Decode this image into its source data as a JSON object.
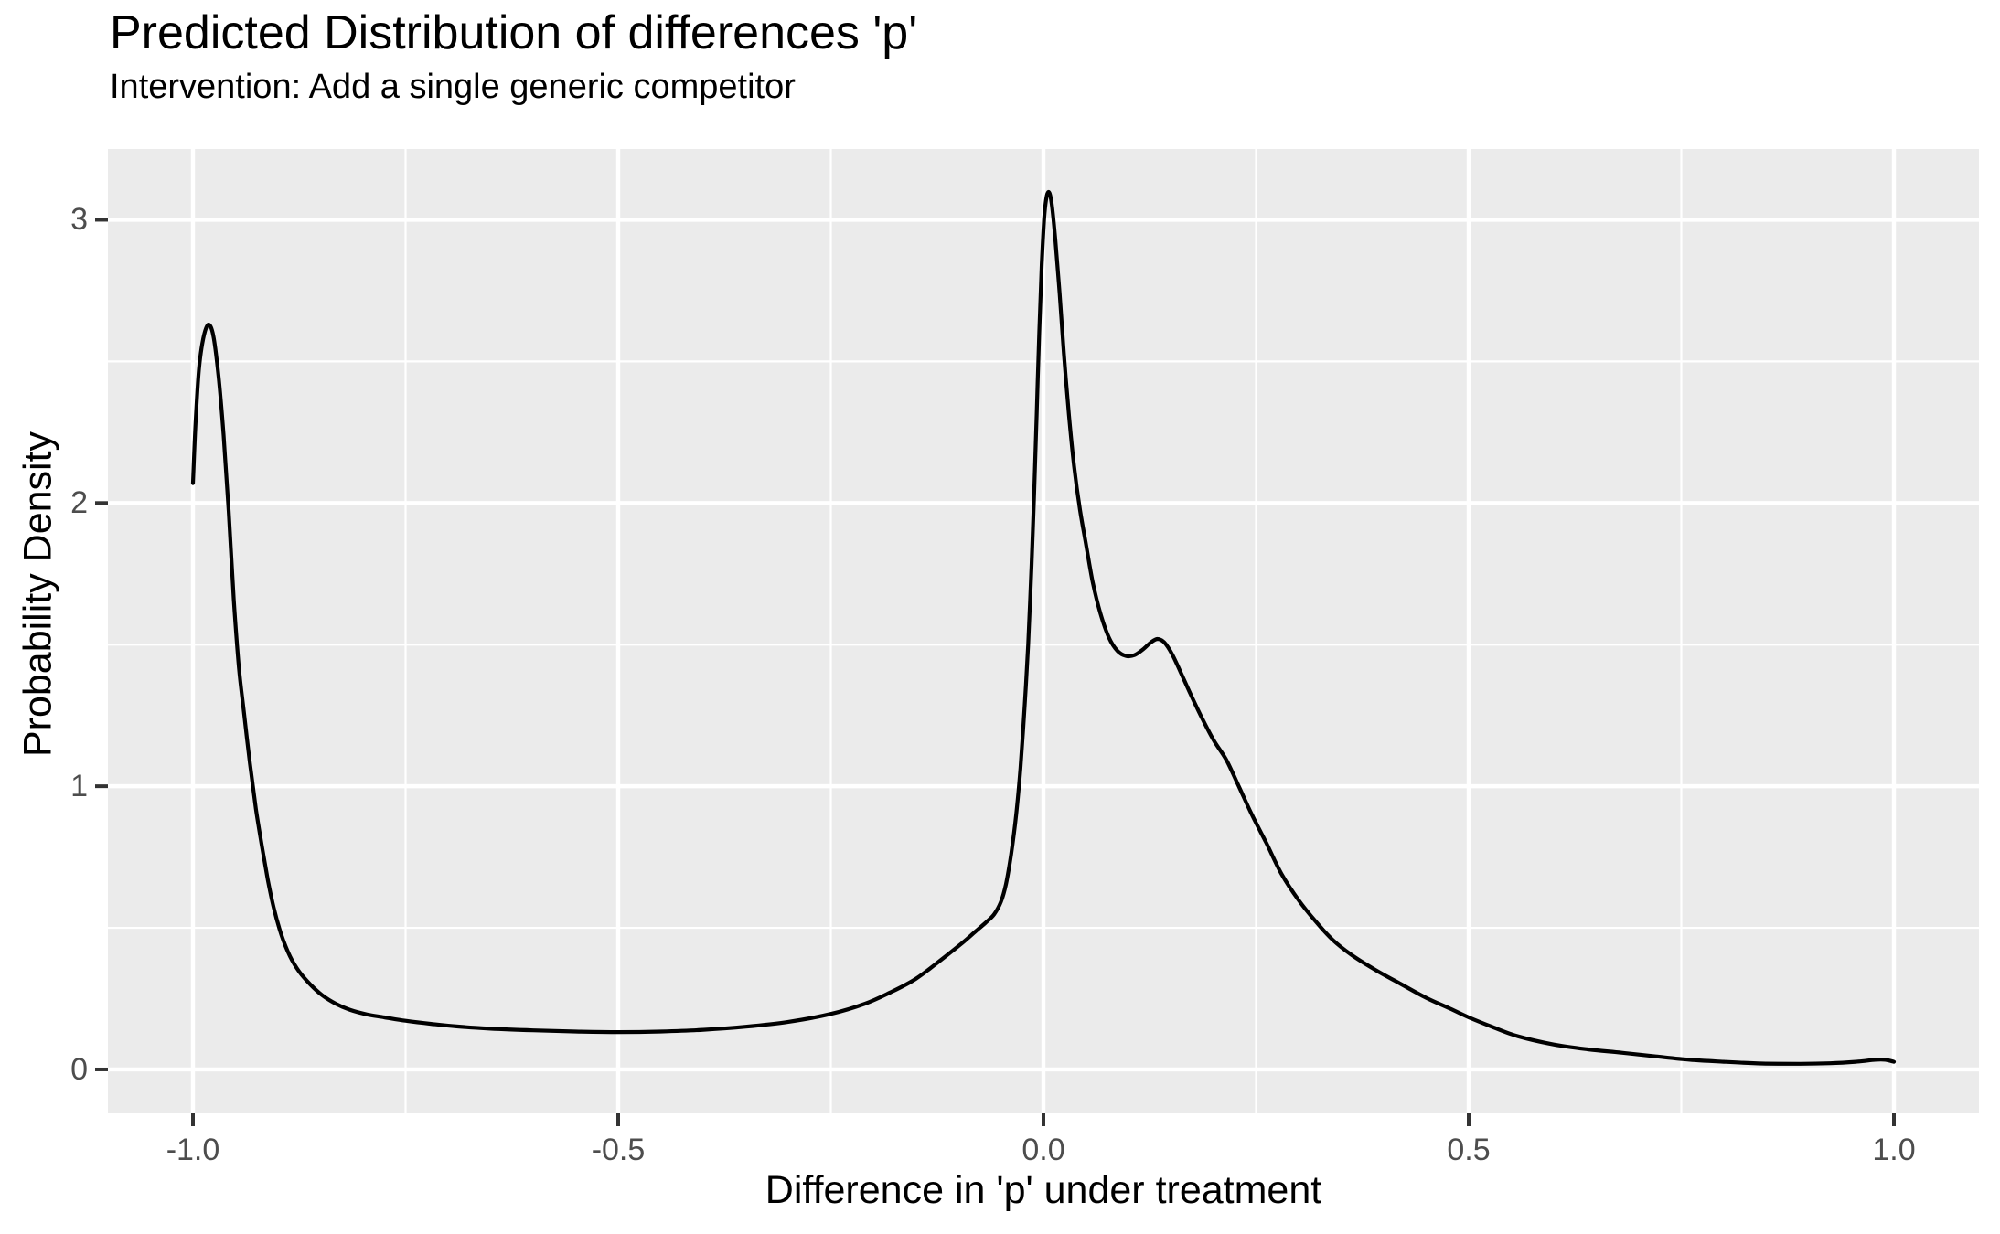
{
  "chart_data": {
    "type": "line",
    "subtype": "density-curve",
    "title": "Predicted Distribution of differences 'p'",
    "subtitle": "Intervention: Add a single generic competitor",
    "xlabel": "Difference in 'p' under treatment",
    "ylabel": "Probability Density",
    "xlim": [
      -1.1,
      1.1
    ],
    "ylim": [
      -0.155,
      3.25
    ],
    "grid": "major-and-minor",
    "legend": "none",
    "x_ticks": [
      {
        "value": -1.0,
        "label": "-1.0"
      },
      {
        "value": -0.5,
        "label": "-0.5"
      },
      {
        "value": 0.0,
        "label": "0.0"
      },
      {
        "value": 0.5,
        "label": "0.5"
      },
      {
        "value": 1.0,
        "label": "1.0"
      }
    ],
    "x_minor": [
      -0.75,
      -0.25,
      0.25,
      0.75
    ],
    "y_ticks": [
      {
        "value": 0,
        "label": "0"
      },
      {
        "value": 1,
        "label": "1"
      },
      {
        "value": 2,
        "label": "2"
      },
      {
        "value": 3,
        "label": "3"
      }
    ],
    "y_minor": [
      0.5,
      1.5,
      2.5
    ],
    "colors": {
      "panel_background": "#EBEBEB",
      "gridline": "#FFFFFF",
      "curve": "#000000",
      "tick_mark": "#333333",
      "tick_label": "#4D4D4D",
      "title_text": "#000000"
    },
    "series": [
      {
        "name": "predicted-density-of-differences",
        "color": "#000000",
        "points": [
          [
            -1.0,
            2.07
          ],
          [
            -0.997,
            2.28
          ],
          [
            -0.993,
            2.47
          ],
          [
            -0.988,
            2.58
          ],
          [
            -0.982,
            2.63
          ],
          [
            -0.976,
            2.59
          ],
          [
            -0.97,
            2.45
          ],
          [
            -0.964,
            2.24
          ],
          [
            -0.958,
            1.97
          ],
          [
            -0.952,
            1.66
          ],
          [
            -0.946,
            1.42
          ],
          [
            -0.94,
            1.26
          ],
          [
            -0.933,
            1.08
          ],
          [
            -0.926,
            0.92
          ],
          [
            -0.919,
            0.79
          ],
          [
            -0.912,
            0.67
          ],
          [
            -0.905,
            0.57
          ],
          [
            -0.896,
            0.475
          ],
          [
            -0.886,
            0.4
          ],
          [
            -0.875,
            0.345
          ],
          [
            -0.862,
            0.3
          ],
          [
            -0.848,
            0.262
          ],
          [
            -0.832,
            0.232
          ],
          [
            -0.815,
            0.21
          ],
          [
            -0.795,
            0.194
          ],
          [
            -0.775,
            0.184
          ],
          [
            -0.75,
            0.172
          ],
          [
            -0.72,
            0.161
          ],
          [
            -0.69,
            0.152
          ],
          [
            -0.65,
            0.144
          ],
          [
            -0.6,
            0.138
          ],
          [
            -0.55,
            0.134
          ],
          [
            -0.5,
            0.132
          ],
          [
            -0.45,
            0.134
          ],
          [
            -0.4,
            0.14
          ],
          [
            -0.35,
            0.151
          ],
          [
            -0.3,
            0.168
          ],
          [
            -0.25,
            0.196
          ],
          [
            -0.21,
            0.232
          ],
          [
            -0.18,
            0.272
          ],
          [
            -0.15,
            0.32
          ],
          [
            -0.12,
            0.388
          ],
          [
            -0.095,
            0.448
          ],
          [
            -0.08,
            0.487
          ],
          [
            -0.068,
            0.518
          ],
          [
            -0.058,
            0.548
          ],
          [
            -0.05,
            0.592
          ],
          [
            -0.044,
            0.655
          ],
          [
            -0.038,
            0.76
          ],
          [
            -0.032,
            0.9
          ],
          [
            -0.027,
            1.065
          ],
          [
            -0.022,
            1.285
          ],
          [
            -0.018,
            1.5
          ],
          [
            -0.014,
            1.78
          ],
          [
            -0.011,
            2.03
          ],
          [
            -0.008,
            2.31
          ],
          [
            -0.005,
            2.6
          ],
          [
            -0.002,
            2.84
          ],
          [
            0.001,
            3.01
          ],
          [
            0.004,
            3.085
          ],
          [
            0.007,
            3.095
          ],
          [
            0.01,
            3.05
          ],
          [
            0.014,
            2.93
          ],
          [
            0.019,
            2.74
          ],
          [
            0.024,
            2.53
          ],
          [
            0.03,
            2.31
          ],
          [
            0.036,
            2.13
          ],
          [
            0.043,
            1.975
          ],
          [
            0.05,
            1.855
          ],
          [
            0.058,
            1.72
          ],
          [
            0.067,
            1.61
          ],
          [
            0.077,
            1.525
          ],
          [
            0.087,
            1.478
          ],
          [
            0.097,
            1.46
          ],
          [
            0.107,
            1.463
          ],
          [
            0.117,
            1.483
          ],
          [
            0.126,
            1.507
          ],
          [
            0.134,
            1.52
          ],
          [
            0.142,
            1.508
          ],
          [
            0.151,
            1.468
          ],
          [
            0.161,
            1.405
          ],
          [
            0.173,
            1.325
          ],
          [
            0.186,
            1.243
          ],
          [
            0.2,
            1.163
          ],
          [
            0.215,
            1.093
          ],
          [
            0.23,
            0.998
          ],
          [
            0.245,
            0.9
          ],
          [
            0.262,
            0.8
          ],
          [
            0.28,
            0.69
          ],
          [
            0.3,
            0.598
          ],
          [
            0.32,
            0.523
          ],
          [
            0.34,
            0.458
          ],
          [
            0.362,
            0.405
          ],
          [
            0.39,
            0.352
          ],
          [
            0.42,
            0.302
          ],
          [
            0.45,
            0.253
          ],
          [
            0.478,
            0.215
          ],
          [
            0.5,
            0.184
          ],
          [
            0.528,
            0.15
          ],
          [
            0.558,
            0.117
          ],
          [
            0.6,
            0.088
          ],
          [
            0.64,
            0.071
          ],
          [
            0.68,
            0.059
          ],
          [
            0.72,
            0.046
          ],
          [
            0.76,
            0.034
          ],
          [
            0.8,
            0.027
          ],
          [
            0.845,
            0.021
          ],
          [
            0.89,
            0.02
          ],
          [
            0.925,
            0.022
          ],
          [
            0.955,
            0.027
          ],
          [
            0.978,
            0.034
          ],
          [
            0.99,
            0.034
          ],
          [
            1.0,
            0.027
          ]
        ]
      }
    ]
  }
}
